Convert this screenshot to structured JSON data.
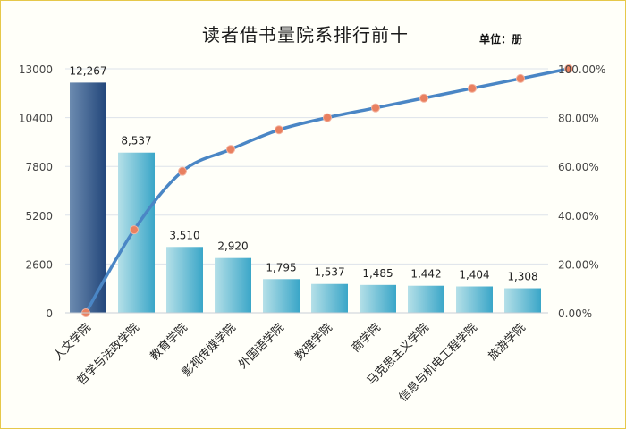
{
  "chart_data": {
    "type": "bar",
    "title": "读者借书量院系排行前十",
    "unit_note": "单位：册",
    "categories": [
      "人文学院",
      "哲学与法政学院",
      "教育学院",
      "影视传媒学院",
      "外国语学院",
      "数理学院",
      "商学院",
      "马克思主义学院",
      "信息与机电工程学院",
      "旅游学院"
    ],
    "values": [
      12267,
      8537,
      3510,
      2920,
      1795,
      1537,
      1485,
      1442,
      1404,
      1308
    ],
    "value_labels": [
      "12,267",
      "8,537",
      "3,510",
      "2,920",
      "1,795",
      "1,537",
      "1,485",
      "1,442",
      "1,404",
      "1,308"
    ],
    "cumulative_percent": [
      0,
      34,
      58,
      67,
      75,
      80,
      84,
      88,
      92,
      96,
      100
    ],
    "y_left": {
      "min": 0,
      "max": 13000,
      "ticks": [
        "0",
        "2600",
        "5200",
        "7800",
        "10400",
        "13000"
      ]
    },
    "y_right": {
      "min": 0,
      "max": 100,
      "ticks": [
        "0.00%",
        "20.00%",
        "40.00%",
        "60.00%",
        "80.00%",
        "100.00%"
      ]
    },
    "colors": {
      "first_bar": "#2f5b8f",
      "bars": "#7fc6d6",
      "line": "#4a86c5",
      "markers": "#e98060",
      "grid": "#dde3ea"
    }
  }
}
